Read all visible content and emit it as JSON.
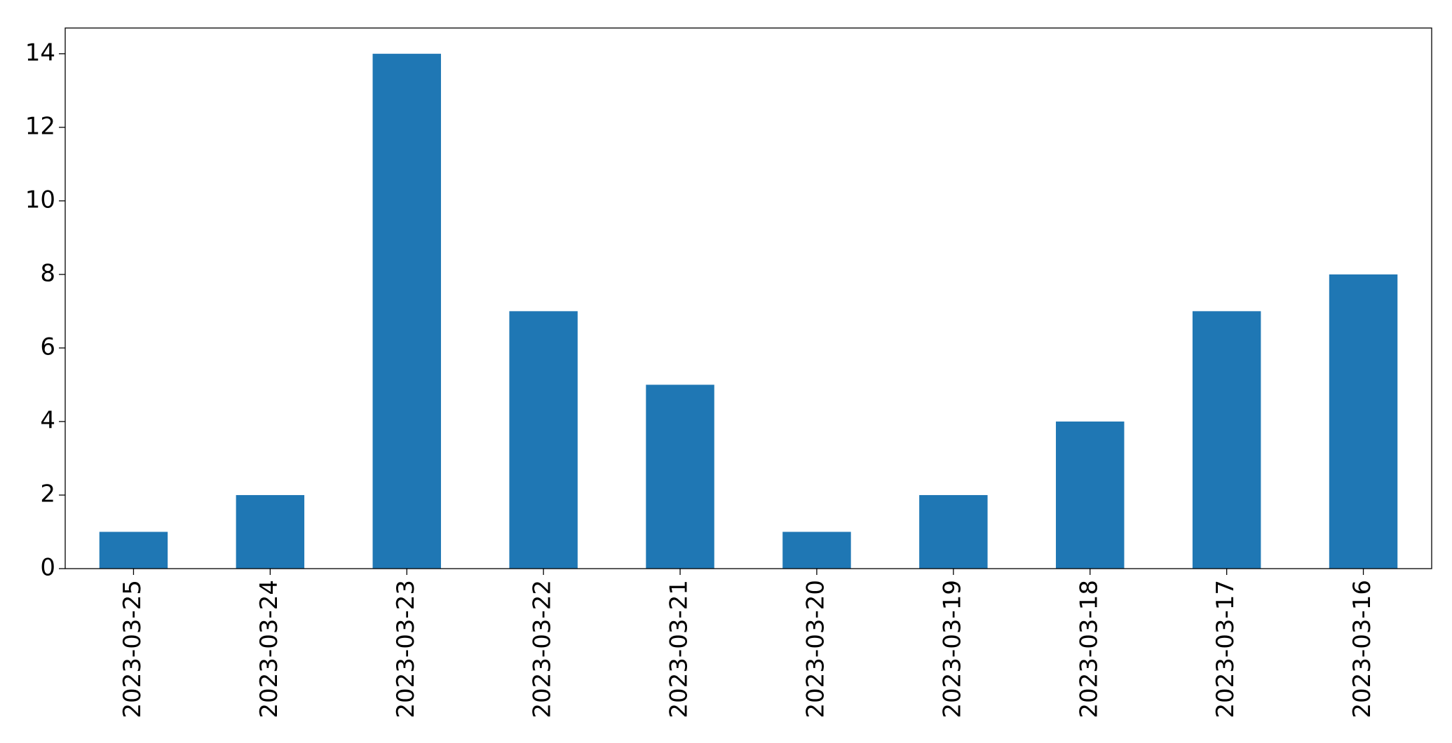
{
  "chart_data": {
    "type": "bar",
    "categories": [
      "2023-03-25",
      "2023-03-24",
      "2023-03-23",
      "2023-03-22",
      "2023-03-21",
      "2023-03-20",
      "2023-03-19",
      "2023-03-18",
      "2023-03-17",
      "2023-03-16"
    ],
    "values": [
      1,
      2,
      14,
      7,
      5,
      1,
      2,
      4,
      7,
      8
    ],
    "color": "#1f77b4",
    "ylim": [
      0,
      14.7
    ],
    "yticks": [
      0,
      2,
      4,
      6,
      8,
      10,
      12,
      14
    ],
    "grid": false
  }
}
